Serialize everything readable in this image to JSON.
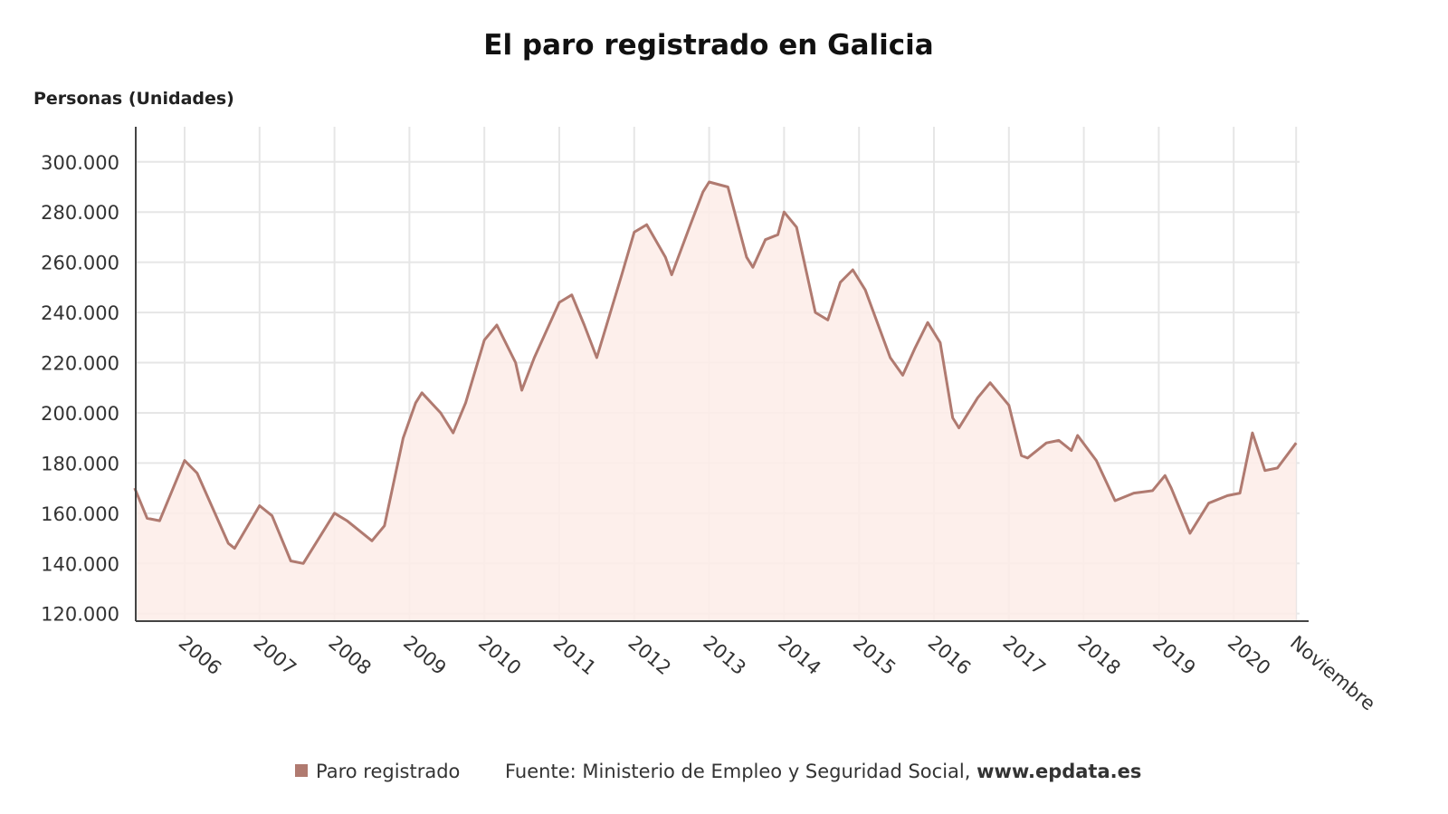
{
  "chart_data": {
    "type": "area",
    "title": "El paro registrado en Galicia",
    "ylabel": "Personas (Unidades)",
    "xlabel": "",
    "ylim": [
      117000,
      314000
    ],
    "yticks": [
      120000,
      140000,
      160000,
      180000,
      200000,
      220000,
      240000,
      260000,
      280000,
      300000
    ],
    "ytick_labels": [
      "120.000",
      "140.000",
      "160.000",
      "180.000",
      "200.000",
      "220.000",
      "240.000",
      "260.000",
      "280.000",
      "300.000"
    ],
    "xtick_labels": [
      "2006",
      "2007",
      "2008",
      "2009",
      "2010",
      "2011",
      "2012",
      "2013",
      "2014",
      "2015",
      "2016",
      "2017",
      "2018",
      "2019",
      "2020",
      "Noviembre"
    ],
    "xticks": [
      "2006-01",
      "2007-01",
      "2008-01",
      "2009-01",
      "2010-01",
      "2011-01",
      "2012-01",
      "2013-01",
      "2014-01",
      "2015-01",
      "2016-01",
      "2017-01",
      "2018-01",
      "2019-01",
      "2020-01",
      "2020-11"
    ],
    "grid": true,
    "legend_position": "bottom",
    "series": [
      {
        "name": "Paro registrado",
        "color": "#b07a70",
        "fill": "#fdece8",
        "x": [
          "2005-05",
          "2005-07",
          "2005-09",
          "2006-01",
          "2006-03",
          "2006-08",
          "2006-09",
          "2007-01",
          "2007-03",
          "2007-06",
          "2007-08",
          "2008-01",
          "2008-03",
          "2008-07",
          "2008-09",
          "2008-12",
          "2009-02",
          "2009-03",
          "2009-06",
          "2009-08",
          "2009-10",
          "2010-01",
          "2010-03",
          "2010-06",
          "2010-07",
          "2010-09",
          "2011-01",
          "2011-03",
          "2011-05",
          "2011-07",
          "2011-11",
          "2012-01",
          "2012-03",
          "2012-06",
          "2012-07",
          "2012-10",
          "2012-12",
          "2013-01",
          "2013-04",
          "2013-07",
          "2013-08",
          "2013-10",
          "2013-12",
          "2014-01",
          "2014-03",
          "2014-06",
          "2014-08",
          "2014-10",
          "2014-12",
          "2015-02",
          "2015-06",
          "2015-08",
          "2015-10",
          "2015-12",
          "2016-02",
          "2016-04",
          "2016-05",
          "2016-08",
          "2016-10",
          "2017-01",
          "2017-03",
          "2017-04",
          "2017-07",
          "2017-09",
          "2017-11",
          "2017-12",
          "2018-03",
          "2018-06",
          "2018-09",
          "2018-12",
          "2019-02",
          "2019-03",
          "2019-06",
          "2019-09",
          "2019-12",
          "2020-02",
          "2020-04",
          "2020-06",
          "2020-08",
          "2020-11"
        ],
        "values": [
          170000,
          158000,
          157000,
          181000,
          176000,
          148000,
          146000,
          163000,
          159000,
          141000,
          140000,
          160000,
          157000,
          149000,
          155000,
          190000,
          204000,
          208000,
          200000,
          192000,
          204000,
          229000,
          235000,
          220000,
          209000,
          222000,
          244000,
          247000,
          235000,
          222000,
          255000,
          272000,
          275000,
          262000,
          255000,
          275000,
          288000,
          292000,
          290000,
          262000,
          258000,
          269000,
          271000,
          280000,
          274000,
          240000,
          237000,
          252000,
          257000,
          249000,
          222000,
          215000,
          226000,
          236000,
          228000,
          198000,
          194000,
          206000,
          212000,
          203000,
          183000,
          182000,
          188000,
          189000,
          185000,
          191000,
          181000,
          165000,
          168000,
          169000,
          175000,
          170000,
          152000,
          164000,
          167000,
          168000,
          192000,
          177000,
          178000,
          188000
        ]
      }
    ],
    "source": "Fuente: Ministerio de Empleo y Seguridad Social,",
    "source_site": "www.epdata.es"
  }
}
